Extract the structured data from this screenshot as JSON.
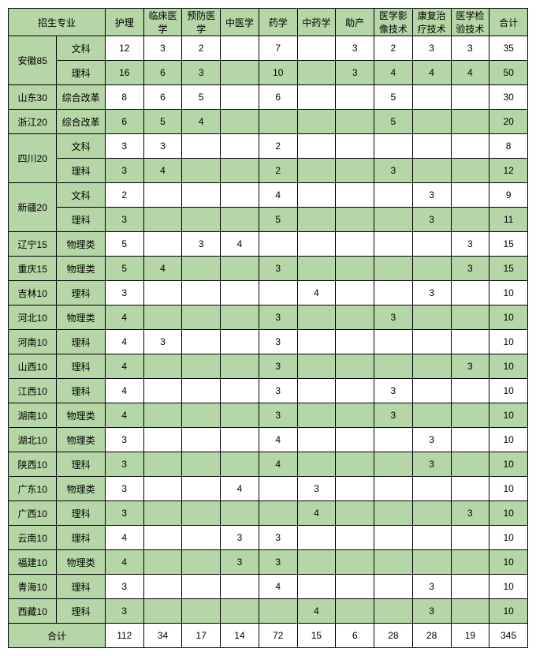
{
  "headers": [
    "招生专业",
    "护理",
    "临床医学",
    "预防医学",
    "中医学",
    "药学",
    "中药学",
    "助产",
    "医学影像技术",
    "康复治疗技术",
    "医学检验技术",
    "合计"
  ],
  "provinces": [
    {
      "name": "安徽85",
      "rows": [
        {
          "type": "文科",
          "green": false,
          "vals": [
            "12",
            "3",
            "2",
            "",
            "7",
            "",
            "3",
            "2",
            "3",
            "3",
            "35"
          ]
        },
        {
          "type": "理科",
          "green": true,
          "vals": [
            "16",
            "6",
            "3",
            "",
            "10",
            "",
            "3",
            "4",
            "4",
            "4",
            "50"
          ]
        }
      ]
    },
    {
      "name": "山东30",
      "rows": [
        {
          "type": "综合改革",
          "green": false,
          "vals": [
            "8",
            "6",
            "5",
            "",
            "6",
            "",
            "",
            "5",
            "",
            "",
            "30"
          ]
        }
      ]
    },
    {
      "name": "浙江20",
      "rows": [
        {
          "type": "综合改革",
          "green": true,
          "vals": [
            "6",
            "5",
            "4",
            "",
            "",
            "",
            "",
            "5",
            "",
            "",
            "20"
          ]
        }
      ]
    },
    {
      "name": "四川20",
      "rows": [
        {
          "type": "文科",
          "green": false,
          "vals": [
            "3",
            "3",
            "",
            "",
            "2",
            "",
            "",
            "",
            "",
            "",
            "8"
          ]
        },
        {
          "type": "理科",
          "green": true,
          "vals": [
            "3",
            "4",
            "",
            "",
            "2",
            "",
            "",
            "3",
            "",
            "",
            "12"
          ]
        }
      ]
    },
    {
      "name": "新疆20",
      "rows": [
        {
          "type": "文科",
          "green": false,
          "vals": [
            "2",
            "",
            "",
            "",
            "4",
            "",
            "",
            "",
            "3",
            "",
            "9"
          ]
        },
        {
          "type": "理科",
          "green": true,
          "vals": [
            "3",
            "",
            "",
            "",
            "5",
            "",
            "",
            "",
            "3",
            "",
            "11"
          ]
        }
      ]
    },
    {
      "name": "辽宁15",
      "rows": [
        {
          "type": "物理类",
          "green": false,
          "vals": [
            "5",
            "",
            "3",
            "4",
            "",
            "",
            "",
            "",
            "",
            "3",
            "15"
          ]
        }
      ]
    },
    {
      "name": "重庆15",
      "rows": [
        {
          "type": "物理类",
          "green": true,
          "vals": [
            "5",
            "4",
            "",
            "",
            "3",
            "",
            "",
            "",
            "",
            "3",
            "15"
          ]
        }
      ]
    },
    {
      "name": "吉林10",
      "rows": [
        {
          "type": "理科",
          "green": false,
          "vals": [
            "3",
            "",
            "",
            "",
            "",
            "4",
            "",
            "",
            "3",
            "",
            "10"
          ]
        }
      ]
    },
    {
      "name": "河北10",
      "rows": [
        {
          "type": "物理类",
          "green": true,
          "vals": [
            "4",
            "",
            "",
            "",
            "3",
            "",
            "",
            "3",
            "",
            "",
            "10"
          ]
        }
      ]
    },
    {
      "name": "河南10",
      "rows": [
        {
          "type": "理科",
          "green": false,
          "vals": [
            "4",
            "3",
            "",
            "",
            "3",
            "",
            "",
            "",
            "",
            "",
            "10"
          ]
        }
      ]
    },
    {
      "name": "山西10",
      "rows": [
        {
          "type": "理科",
          "green": true,
          "vals": [
            "4",
            "",
            "",
            "",
            "3",
            "",
            "",
            "",
            "",
            "3",
            "10"
          ]
        }
      ]
    },
    {
      "name": "江西10",
      "rows": [
        {
          "type": "理科",
          "green": false,
          "vals": [
            "4",
            "",
            "",
            "",
            "3",
            "",
            "",
            "3",
            "",
            "",
            "10"
          ]
        }
      ]
    },
    {
      "name": "湖南10",
      "rows": [
        {
          "type": "物理类",
          "green": true,
          "vals": [
            "4",
            "",
            "",
            "",
            "3",
            "",
            "",
            "3",
            "",
            "",
            "10"
          ]
        }
      ]
    },
    {
      "name": "湖北10",
      "rows": [
        {
          "type": "物理类",
          "green": false,
          "vals": [
            "3",
            "",
            "",
            "",
            "4",
            "",
            "",
            "",
            "3",
            "",
            "10"
          ]
        }
      ]
    },
    {
      "name": "陕西10",
      "rows": [
        {
          "type": "理科",
          "green": true,
          "vals": [
            "3",
            "",
            "",
            "",
            "4",
            "",
            "",
            "",
            "3",
            "",
            "10"
          ]
        }
      ]
    },
    {
      "name": "广东10",
      "rows": [
        {
          "type": "物理类",
          "green": false,
          "vals": [
            "3",
            "",
            "",
            "4",
            "",
            "3",
            "",
            "",
            "",
            "",
            "10"
          ]
        }
      ]
    },
    {
      "name": "广西10",
      "rows": [
        {
          "type": "理科",
          "green": true,
          "vals": [
            "3",
            "",
            "",
            "",
            "",
            "4",
            "",
            "",
            "",
            "3",
            "10"
          ]
        }
      ]
    },
    {
      "name": "云南10",
      "rows": [
        {
          "type": "理科",
          "green": false,
          "vals": [
            "4",
            "",
            "",
            "3",
            "3",
            "",
            "",
            "",
            "",
            "",
            "10"
          ]
        }
      ]
    },
    {
      "name": "福建10",
      "rows": [
        {
          "type": "物理类",
          "green": true,
          "vals": [
            "4",
            "",
            "",
            "3",
            "3",
            "",
            "",
            "",
            "",
            "",
            "10"
          ]
        }
      ]
    },
    {
      "name": "青海10",
      "rows": [
        {
          "type": "理科",
          "green": false,
          "vals": [
            "3",
            "",
            "",
            "",
            "4",
            "",
            "",
            "",
            "3",
            "",
            "10"
          ]
        }
      ]
    },
    {
      "name": "西藏10",
      "rows": [
        {
          "type": "理科",
          "green": true,
          "vals": [
            "3",
            "",
            "",
            "",
            "",
            "4",
            "",
            "",
            "3",
            "",
            "10"
          ]
        }
      ]
    }
  ],
  "totalLabel": "合计",
  "totals": [
    "112",
    "34",
    "17",
    "14",
    "72",
    "15",
    "6",
    "28",
    "28",
    "19",
    "345"
  ]
}
